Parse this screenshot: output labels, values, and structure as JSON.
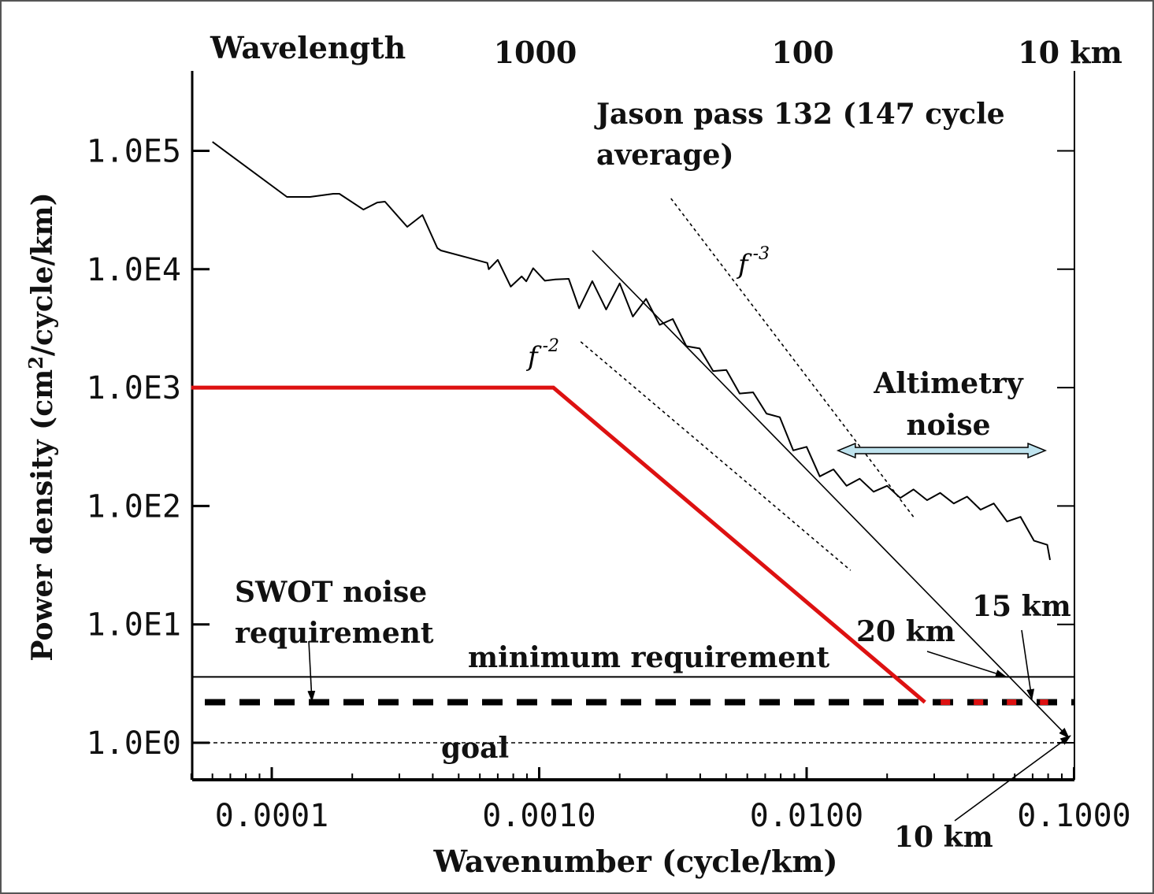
{
  "chart_data": {
    "type": "line",
    "xlabel": "Wavenumber (cycle/km)",
    "ylabel": "Power density (cm²/cycle/km)",
    "top_axis": {
      "label": "Wavelength",
      "ticks": [
        {
          "k": 0.001,
          "label": "1000"
        },
        {
          "k": 0.01,
          "label": "100"
        },
        {
          "k": 0.1,
          "label": "10 km"
        }
      ]
    },
    "x_scale": "log",
    "y_scale": "log",
    "xlim": [
      5e-05,
      0.1
    ],
    "ylim": [
      0.49,
      480000
    ],
    "x_ticks": [
      {
        "v": 0.0001,
        "label": "0.0001"
      },
      {
        "v": 0.001,
        "label": "0.0010"
      },
      {
        "v": 0.01,
        "label": "0.0100"
      },
      {
        "v": 0.1,
        "label": "0.1000"
      }
    ],
    "y_ticks": [
      {
        "v": 100000,
        "label": "1.0E5"
      },
      {
        "v": 10000,
        "label": "1.0E4"
      },
      {
        "v": 1000,
        "label": "1.0E3"
      },
      {
        "v": 100,
        "label": "1.0E2"
      },
      {
        "v": 10,
        "label": "1.0E1"
      },
      {
        "v": 1,
        "label": "1.0E0"
      }
    ],
    "grid": false,
    "series": [
      {
        "name": "Jason pass 132 (147 cycle average)",
        "color": "#000000",
        "x": [
          6e-05,
          0.000114,
          0.000139,
          0.00017,
          0.000179,
          0.00022,
          0.000248,
          0.000265,
          0.000321,
          0.000366,
          0.000416,
          0.000429,
          0.000535,
          0.00064,
          0.000648,
          0.0007,
          0.000783,
          0.00086,
          0.000895,
          0.00095,
          0.00105,
          0.00115,
          0.00129,
          0.00141,
          0.00158,
          0.00178,
          0.002,
          0.00224,
          0.00251,
          0.00282,
          0.00316,
          0.00355,
          0.00398,
          0.00447,
          0.00501,
          0.00562,
          0.00631,
          0.00708,
          0.00794,
          0.00891,
          0.01,
          0.0112,
          0.0126,
          0.0141,
          0.0158,
          0.0178,
          0.02,
          0.0224,
          0.0251,
          0.0282,
          0.0316,
          0.0355,
          0.0398,
          0.0447,
          0.0501,
          0.0562,
          0.0631,
          0.0708,
          0.0794,
          0.0813
        ],
        "y": [
          119000,
          40800,
          40800,
          43400,
          43400,
          31900,
          36600,
          37200,
          22800,
          28700,
          15100,
          14400,
          12600,
          11300,
          10000,
          12000,
          7130,
          8700,
          7900,
          10200,
          8000,
          8200,
          8300,
          4680,
          7940,
          4570,
          7590,
          3980,
          5620,
          3390,
          3800,
          2240,
          2140,
          1380,
          1410,
          891,
          912,
          603,
          562,
          295,
          316,
          178,
          204,
          148,
          170,
          132,
          148,
          117,
          138,
          112,
          129,
          105,
          120,
          93,
          105,
          74,
          81,
          51,
          47,
          35
        ]
      },
      {
        "name": "SWOT noise requirement",
        "color": "#dd1111",
        "x": [
          5e-05,
          0.00113,
          0.0277,
          0.08
        ],
        "y": [
          1000,
          1000,
          2.2,
          2.2
        ]
      }
    ],
    "reference_lines": [
      {
        "type": "horizontal",
        "label": "minimum requirement",
        "y": 3.6,
        "style": "solid"
      },
      {
        "type": "horizontal",
        "label": "",
        "y": 2.2,
        "style": "dashed"
      },
      {
        "type": "horizontal",
        "label": "goal",
        "y": 1.0,
        "style": "dotted"
      },
      {
        "type": "slope",
        "label": "",
        "x": [
          0.00158,
          0.0957
        ],
        "y": [
          14400,
          1.1
        ],
        "style": "solid"
      },
      {
        "type": "slope",
        "label": "f -3",
        "x": [
          0.00311,
          0.0252
        ],
        "y": [
          39600,
          80
        ],
        "style": "dotted"
      },
      {
        "type": "slope",
        "label": "f -2",
        "x": [
          0.00143,
          0.0146
        ],
        "y": [
          2440,
          28.6
        ],
        "style": "dotted"
      }
    ],
    "annotations": {
      "jason_line1": "Jason pass 132 (147 cycle",
      "jason_line2": "average)",
      "altimetry_line1": "Altimetry",
      "altimetry_line2": "noise",
      "altimetry_range": {
        "x": [
          0.0131,
          0.0781
        ],
        "y": 294
      },
      "swot_line1": "SWOT noise",
      "swot_line2": "requirement",
      "km20": "20 km",
      "km15": "15 km",
      "km10": "10 km",
      "f3_base": "f",
      "f3_exp": "-3",
      "f2_base": "f",
      "f2_exp": "-2"
    },
    "colors": {
      "requirement": "#dd1111",
      "spectrum": "#000000",
      "arrow_fill": "#bfe3ee"
    }
  }
}
